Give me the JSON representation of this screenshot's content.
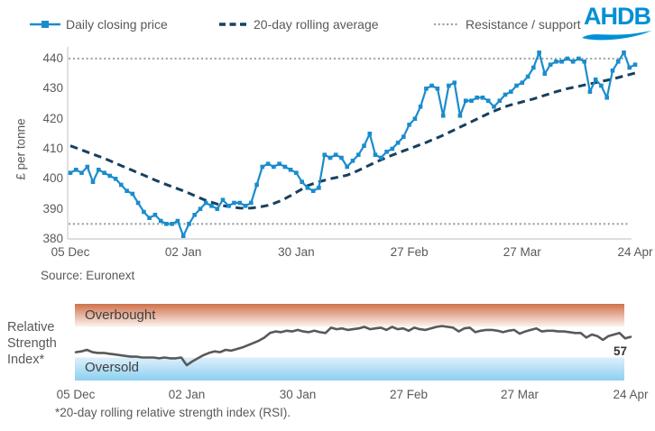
{
  "header": {
    "legend": [
      {
        "label": "Daily closing price",
        "style": "line-with-square-marker"
      },
      {
        "label": "20-day rolling average",
        "style": "dashed-line"
      },
      {
        "label": "Resistance / support",
        "style": "dotted-line"
      }
    ],
    "logo_text": "AHDB"
  },
  "colors": {
    "price_line": "#1a8ccd",
    "average_line": "#17405f",
    "dotted_line": "#9aa4ab",
    "axis_line": "#d4d4d4",
    "rsi_line": "#595959",
    "logo_blue": "#0090d4",
    "overbought_top": "#d0714b",
    "overbought_bottom": "#fdf5f1",
    "oversold_top": "#ddeffb",
    "oversold_bottom": "#8dd0f0"
  },
  "price_section": {
    "ylabel": "£ per tonne",
    "source": "Source: Euronext"
  },
  "rsi_section": {
    "axis_label": "Relative\nStrength\nIndex*",
    "overbought_label": "Overbought",
    "oversold_label": "Oversold",
    "end_value": "57",
    "footnote": "*20-day rolling relative strength index (RSI)."
  },
  "chart_data": [
    {
      "type": "line",
      "ylabel": "£ per tonne",
      "ylim": [
        380,
        440
      ],
      "yticks": [
        380,
        390,
        400,
        410,
        420,
        430,
        440
      ],
      "x_tick_labels": [
        "05 Dec",
        "02 Jan",
        "30 Jan",
        "27 Feb",
        "27 Mar",
        "24 Apr"
      ],
      "x_tick_indices": [
        0,
        20,
        40,
        60,
        80,
        100
      ],
      "resistance": 440,
      "support": 385,
      "grid": false,
      "legend_position": "top",
      "series": [
        {
          "name": "Daily closing price",
          "values": [
            402,
            403,
            402,
            404,
            399,
            403,
            402,
            401,
            400,
            398,
            396,
            395,
            392,
            389,
            387,
            388,
            386,
            385,
            385,
            386,
            381,
            385,
            388,
            390,
            392,
            391,
            390,
            393,
            391,
            392,
            392,
            391,
            392,
            398,
            404,
            405,
            404,
            405,
            404,
            403,
            402,
            399,
            397,
            396,
            397,
            408,
            407,
            408,
            407,
            404,
            406,
            408,
            411,
            415,
            408,
            407,
            409,
            410,
            412,
            414,
            418,
            420,
            424,
            430,
            431,
            430,
            421,
            431,
            432,
            421,
            426,
            426,
            427,
            427,
            426,
            424,
            426,
            428,
            429,
            431,
            432,
            434,
            437,
            442,
            435,
            438,
            439,
            439,
            440,
            439,
            440,
            439,
            429,
            433,
            431,
            427,
            436,
            439,
            442,
            437,
            438
          ]
        },
        {
          "name": "20-day rolling average",
          "values": [
            411,
            410.3,
            409.6,
            408.9,
            408.2,
            407.5,
            406.8,
            406,
            405.2,
            404.4,
            403.6,
            402.8,
            402,
            401.2,
            400.4,
            399.6,
            398.8,
            398.1,
            397.4,
            396.7,
            396,
            395.2,
            394.4,
            393.6,
            392.8,
            392.2,
            391.6,
            391.1,
            390.8,
            390.5,
            390.3,
            390.2,
            390.3,
            390.5,
            390.8,
            391.2,
            391.8,
            392.5,
            393.4,
            394.4,
            395.5,
            396.6,
            397.7,
            398.4,
            399,
            399.5,
            400,
            400.4,
            400.8,
            401.2,
            402,
            402.8,
            403.7,
            404.6,
            405.5,
            406.3,
            407.1,
            407.9,
            408.6,
            409.3,
            410,
            410.7,
            411.4,
            412.1,
            412.9,
            413.7,
            414.5,
            415.4,
            416.3,
            417.2,
            418.1,
            419,
            419.9,
            420.8,
            421.7,
            422.5,
            423.3,
            424,
            424.6,
            425.1,
            425.6,
            426.1,
            426.6,
            427.2,
            427.8,
            428.4,
            429,
            429.5,
            430,
            430.4,
            430.8,
            431.2,
            431.6,
            432,
            432.4,
            432.8,
            433.2,
            433.7,
            434.2,
            434.7,
            435.2
          ]
        }
      ]
    },
    {
      "type": "line",
      "name": "Relative Strength Index (20-day rolling RSI)",
      "ylim": [
        0,
        100
      ],
      "bands": {
        "overbought": [
          70,
          100
        ],
        "oversold": [
          0,
          30
        ]
      },
      "x_tick_labels": [
        "05 Dec",
        "02 Jan",
        "30 Jan",
        "27 Feb",
        "27 Mar",
        "24 Apr"
      ],
      "x_tick_indices": [
        0,
        20,
        40,
        60,
        80,
        100
      ],
      "end_label": "57",
      "values": [
        37,
        38,
        40,
        37,
        36,
        36,
        35,
        34,
        33,
        32,
        31,
        31,
        30,
        30,
        30,
        29,
        30,
        29,
        29,
        30,
        20,
        25,
        29,
        33,
        36,
        38,
        37,
        40,
        39,
        41,
        43,
        46,
        49,
        52,
        56,
        62,
        64,
        63,
        65,
        64,
        66,
        64,
        63,
        65,
        63,
        62,
        69,
        67,
        68,
        66,
        67,
        68,
        70,
        67,
        68,
        69,
        66,
        70,
        67,
        68,
        65,
        69,
        67,
        66,
        68,
        70,
        71,
        70,
        69,
        64,
        68,
        69,
        63,
        65,
        66,
        66,
        65,
        63,
        65,
        66,
        61,
        64,
        66,
        68,
        64,
        65,
        65,
        64,
        64,
        63,
        62,
        62,
        56,
        60,
        58,
        53,
        58,
        60,
        62,
        55,
        57
      ]
    }
  ]
}
